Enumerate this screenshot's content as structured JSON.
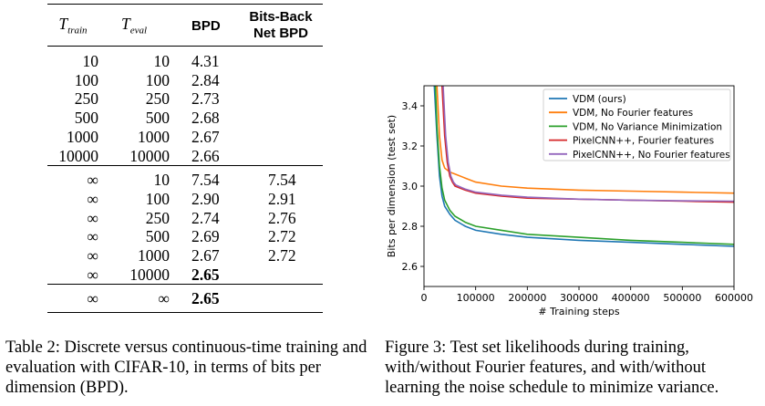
{
  "table": {
    "headers": {
      "t_train": "T",
      "t_train_sub": "train",
      "t_eval": "T",
      "t_eval_sub": "eval",
      "bpd": "BPD",
      "bitsback_line1": "Bits-Back",
      "bitsback_line2": "Net BPD"
    },
    "block1": [
      {
        "t_train": "10",
        "t_eval": "10",
        "bpd": "4.31",
        "bb": ""
      },
      {
        "t_train": "100",
        "t_eval": "100",
        "bpd": "2.84",
        "bb": ""
      },
      {
        "t_train": "250",
        "t_eval": "250",
        "bpd": "2.73",
        "bb": ""
      },
      {
        "t_train": "500",
        "t_eval": "500",
        "bpd": "2.68",
        "bb": ""
      },
      {
        "t_train": "1000",
        "t_eval": "1000",
        "bpd": "2.67",
        "bb": ""
      },
      {
        "t_train": "10000",
        "t_eval": "10000",
        "bpd": "2.66",
        "bb": ""
      }
    ],
    "block2": [
      {
        "t_train": "∞",
        "t_eval": "10",
        "bpd": "7.54",
        "bb": "7.54"
      },
      {
        "t_train": "∞",
        "t_eval": "100",
        "bpd": "2.90",
        "bb": "2.91"
      },
      {
        "t_train": "∞",
        "t_eval": "250",
        "bpd": "2.74",
        "bb": "2.76"
      },
      {
        "t_train": "∞",
        "t_eval": "500",
        "bpd": "2.69",
        "bb": "2.72"
      },
      {
        "t_train": "∞",
        "t_eval": "1000",
        "bpd": "2.67",
        "bb": "2.72"
      },
      {
        "t_train": "∞",
        "t_eval": "10000",
        "bpd": "2.65",
        "bb": ""
      }
    ],
    "block3": [
      {
        "t_train": "∞",
        "t_eval": "∞",
        "bpd": "2.65",
        "bb": ""
      }
    ]
  },
  "captions": {
    "table": "Table 2: Discrete versus continuous-time training and evaluation with CIFAR-10, in terms of bits per dimension (BPD).",
    "figure": "Figure 3: Test set likelihoods during training, with/without Fourier features, and with/without learning the noise schedule to minimize variance."
  },
  "chart_data": {
    "type": "line",
    "xlabel": "# Training steps",
    "ylabel": "Bits per dimension (test set)",
    "xlim": [
      0,
      600000
    ],
    "ylim": [
      2.5,
      3.5
    ],
    "xticks": [
      "0",
      "100000",
      "200000",
      "300000",
      "400000",
      "500000",
      "600000"
    ],
    "yticks": [
      "2.6",
      "2.8",
      "3.0",
      "3.2",
      "3.4"
    ],
    "legend_position": "top-right",
    "series": [
      {
        "name": "VDM (ours)",
        "color": "#1f77b4",
        "x": [
          20000,
          25000,
          30000,
          35000,
          40000,
          50000,
          60000,
          80000,
          100000,
          150000,
          200000,
          300000,
          400000,
          500000,
          600000
        ],
        "y": [
          3.5,
          3.25,
          3.05,
          2.95,
          2.9,
          2.86,
          2.83,
          2.8,
          2.78,
          2.76,
          2.745,
          2.73,
          2.72,
          2.71,
          2.7
        ]
      },
      {
        "name": "VDM, No Fourier features",
        "color": "#ff7f0e",
        "x": [
          25000,
          30000,
          35000,
          40000,
          50000,
          60000,
          80000,
          100000,
          150000,
          200000,
          300000,
          400000,
          500000,
          600000
        ],
        "y": [
          3.5,
          3.25,
          3.13,
          3.09,
          3.07,
          3.06,
          3.04,
          3.02,
          3.0,
          2.99,
          2.98,
          2.975,
          2.97,
          2.965
        ]
      },
      {
        "name": "VDM, No Variance Minimization",
        "color": "#2ca02c",
        "x": [
          22000,
          25000,
          30000,
          35000,
          40000,
          50000,
          60000,
          80000,
          100000,
          150000,
          200000,
          300000,
          400000,
          500000,
          600000
        ],
        "y": [
          3.5,
          3.3,
          3.1,
          2.99,
          2.93,
          2.88,
          2.85,
          2.82,
          2.8,
          2.78,
          2.76,
          2.745,
          2.73,
          2.72,
          2.71
        ]
      },
      {
        "name": "PixelCNN++, Fourier features",
        "color": "#d62728",
        "x": [
          35000,
          40000,
          45000,
          50000,
          55000,
          60000,
          80000,
          100000,
          150000,
          200000,
          300000,
          400000,
          500000,
          600000
        ],
        "y": [
          3.5,
          3.25,
          3.12,
          3.05,
          3.02,
          3.0,
          2.98,
          2.965,
          2.95,
          2.94,
          2.935,
          2.93,
          2.925,
          2.92
        ]
      },
      {
        "name": "PixelCNN++, No Fourier features",
        "color": "#9467bd",
        "x": [
          37000,
          42000,
          47000,
          52000,
          57000,
          62000,
          80000,
          100000,
          150000,
          200000,
          300000,
          400000,
          500000,
          600000
        ],
        "y": [
          3.5,
          3.25,
          3.12,
          3.05,
          3.02,
          3.005,
          2.985,
          2.97,
          2.955,
          2.945,
          2.935,
          2.93,
          2.927,
          2.925
        ]
      }
    ]
  }
}
